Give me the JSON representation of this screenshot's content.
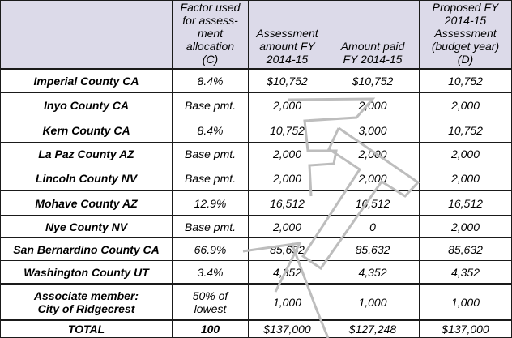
{
  "table": {
    "headers": [
      "",
      "Factor used\nfor assess-\nment\nallocation\n(C)",
      "Assessment\namount FY\n2014-15",
      "Amount paid\nFY 2014-15",
      "Proposed FY\n2014-15\nAssessment\n(budget year)\n(D)"
    ],
    "rows": [
      [
        "Imperial County CA",
        "8.4%",
        "$10,752",
        "$10,752",
        "10,752"
      ],
      [
        "Inyo County CA",
        "Base pmt.",
        "2,000",
        "2,000",
        "2,000"
      ],
      [
        "Kern County CA",
        "8.4%",
        "10,752",
        "3,000",
        "10,752"
      ],
      [
        "La Paz County AZ",
        "Base pmt.",
        "2,000",
        "2,000",
        "2,000"
      ],
      [
        "Lincoln County NV",
        "Base pmt.",
        "2,000",
        "2,000",
        "2,000"
      ],
      [
        "Mohave County AZ",
        "12.9%",
        "16,512",
        "16,512",
        "16,512"
      ],
      [
        "Nye County NV",
        "Base pmt.",
        "2,000",
        "0",
        "2,000"
      ],
      [
        "San Bernardino County CA",
        "66.9%",
        "85,632",
        "85,632",
        "85,632"
      ],
      [
        "Washington County UT",
        "3.4%",
        "4,352",
        "4,352",
        "4,352"
      ],
      [
        "Associate member:\nCity of Ridgecrest",
        "50% of\nlowest",
        "1,000",
        "1,000",
        "1,000"
      ]
    ],
    "total": [
      "TOTAL",
      "100",
      "$137,000",
      "$127,248",
      "$137,000"
    ]
  },
  "watermark": {
    "text": "DRAFT",
    "color": "#bdbdbd"
  }
}
